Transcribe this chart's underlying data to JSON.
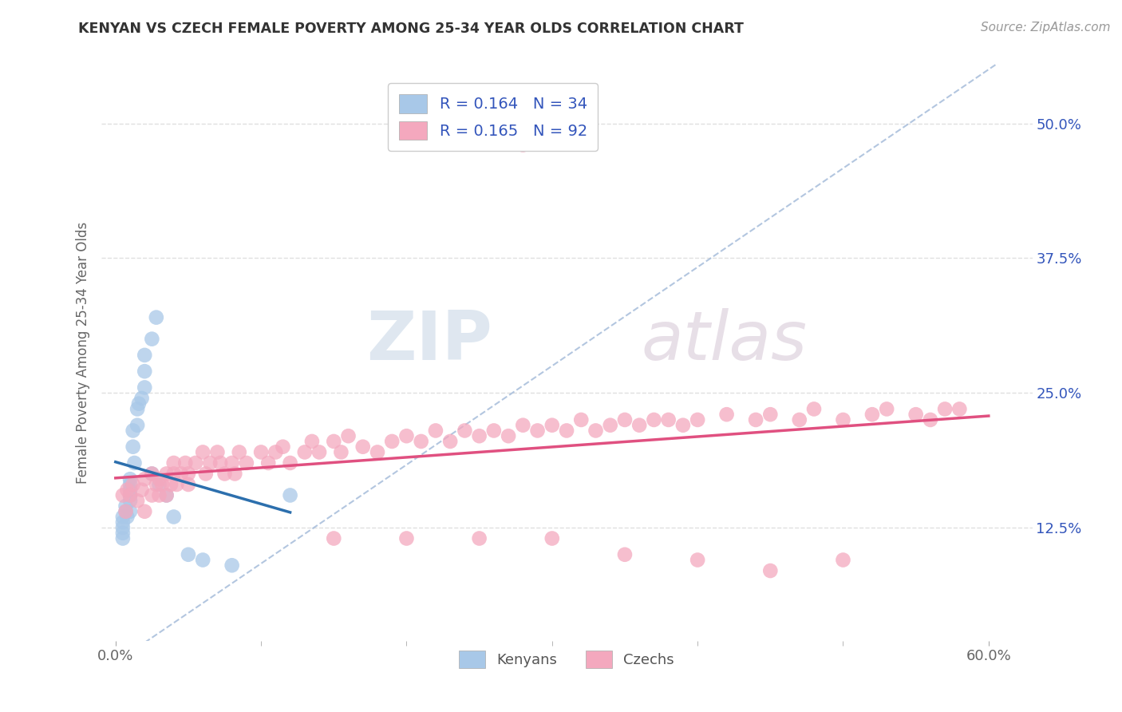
{
  "title": "KENYAN VS CZECH FEMALE POVERTY AMONG 25-34 YEAR OLDS CORRELATION CHART",
  "source": "Source: ZipAtlas.com",
  "xlabel": "",
  "ylabel": "Female Poverty Among 25-34 Year Olds",
  "xlim": [
    -0.01,
    0.63
  ],
  "ylim": [
    0.02,
    0.555
  ],
  "xticks": [
    0.0,
    0.6
  ],
  "xticklabels": [
    "0.0%",
    "60.0%"
  ],
  "yticks_right": [
    0.125,
    0.25,
    0.375,
    0.5
  ],
  "yticklabels_right": [
    "12.5%",
    "25.0%",
    "37.5%",
    "50.0%"
  ],
  "legend_r1": "R = 0.164",
  "legend_n1": "N = 34",
  "legend_r2": "R = 0.165",
  "legend_n2": "N = 92",
  "blue_color": "#a8c8e8",
  "pink_color": "#f4a8be",
  "blue_line_color": "#2c6fad",
  "pink_line_color": "#e05080",
  "diag_color": "#a0b8d8",
  "legend_text_color": "#3355bb",
  "watermark_color": "#d8e4f0",
  "watermark_text_color": "#c0cce0",
  "grid_color": "#e0e0e0",
  "background_color": "#ffffff",
  "ken_x": [
    0.005,
    0.005,
    0.005,
    0.005,
    0.005,
    0.007,
    0.007,
    0.008,
    0.01,
    0.01,
    0.01,
    0.01,
    0.01,
    0.01,
    0.012,
    0.012,
    0.013,
    0.015,
    0.015,
    0.016,
    0.018,
    0.02,
    0.02,
    0.02,
    0.025,
    0.025,
    0.028,
    0.03,
    0.035,
    0.04,
    0.05,
    0.06,
    0.08,
    0.12
  ],
  "ken_y": [
    0.135,
    0.13,
    0.125,
    0.12,
    0.115,
    0.14,
    0.145,
    0.135,
    0.155,
    0.15,
    0.16,
    0.165,
    0.17,
    0.14,
    0.2,
    0.215,
    0.185,
    0.22,
    0.235,
    0.24,
    0.245,
    0.255,
    0.27,
    0.285,
    0.3,
    0.175,
    0.32,
    0.165,
    0.155,
    0.135,
    0.1,
    0.095,
    0.09,
    0.155
  ],
  "cz_x": [
    0.005,
    0.007,
    0.008,
    0.01,
    0.012,
    0.015,
    0.018,
    0.02,
    0.02,
    0.025,
    0.025,
    0.028,
    0.03,
    0.03,
    0.032,
    0.035,
    0.035,
    0.038,
    0.04,
    0.04,
    0.042,
    0.045,
    0.048,
    0.05,
    0.05,
    0.055,
    0.06,
    0.062,
    0.065,
    0.07,
    0.072,
    0.075,
    0.08,
    0.082,
    0.085,
    0.09,
    0.1,
    0.105,
    0.11,
    0.115,
    0.12,
    0.13,
    0.135,
    0.14,
    0.15,
    0.155,
    0.16,
    0.17,
    0.18,
    0.19,
    0.2,
    0.21,
    0.22,
    0.23,
    0.24,
    0.25,
    0.26,
    0.27,
    0.28,
    0.29,
    0.3,
    0.31,
    0.32,
    0.33,
    0.34,
    0.35,
    0.36,
    0.37,
    0.38,
    0.39,
    0.4,
    0.42,
    0.44,
    0.45,
    0.47,
    0.48,
    0.5,
    0.52,
    0.53,
    0.55,
    0.56,
    0.57,
    0.28,
    0.58,
    0.35,
    0.4,
    0.45,
    0.5,
    0.15,
    0.2,
    0.25,
    0.3
  ],
  "cz_y": [
    0.155,
    0.14,
    0.16,
    0.155,
    0.165,
    0.15,
    0.16,
    0.17,
    0.14,
    0.155,
    0.175,
    0.165,
    0.155,
    0.17,
    0.165,
    0.175,
    0.155,
    0.165,
    0.175,
    0.185,
    0.165,
    0.175,
    0.185,
    0.175,
    0.165,
    0.185,
    0.195,
    0.175,
    0.185,
    0.195,
    0.185,
    0.175,
    0.185,
    0.175,
    0.195,
    0.185,
    0.195,
    0.185,
    0.195,
    0.2,
    0.185,
    0.195,
    0.205,
    0.195,
    0.205,
    0.195,
    0.21,
    0.2,
    0.195,
    0.205,
    0.21,
    0.205,
    0.215,
    0.205,
    0.215,
    0.21,
    0.215,
    0.21,
    0.22,
    0.215,
    0.22,
    0.215,
    0.225,
    0.215,
    0.22,
    0.225,
    0.22,
    0.225,
    0.225,
    0.22,
    0.225,
    0.23,
    0.225,
    0.23,
    0.225,
    0.235,
    0.225,
    0.23,
    0.235,
    0.23,
    0.225,
    0.235,
    0.48,
    0.235,
    0.1,
    0.095,
    0.085,
    0.095,
    0.115,
    0.115,
    0.115,
    0.115
  ]
}
